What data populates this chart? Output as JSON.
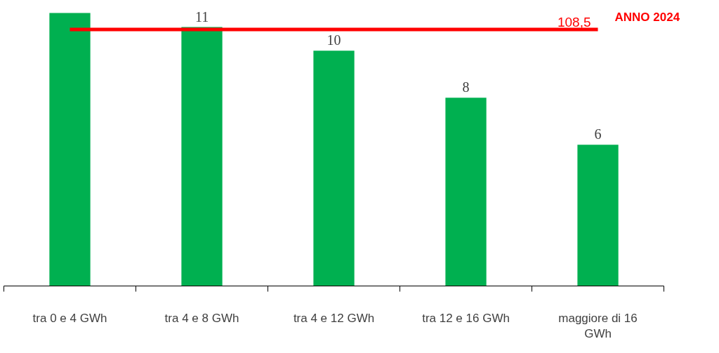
{
  "chart_data": {
    "type": "bar",
    "categories": [
      "tra 0 e 4 GWh",
      "tra 4 e 8 GWh",
      "tra 4 e 12 GWh",
      "tra 12 e 16 GWh",
      "maggiore di 16\nGWh"
    ],
    "values": [
      11.6,
      11,
      10,
      8,
      6
    ],
    "value_labels": [
      null,
      "11",
      "10",
      "8",
      "6"
    ],
    "color": "#00b050",
    "ref_lines": [
      {
        "axis": "y",
        "value": 10.9,
        "color": "#ff0000"
      }
    ],
    "annotations": [
      "108,5",
      "ANNO 2024"
    ],
    "tick_labels": "x",
    "grid": false
  }
}
